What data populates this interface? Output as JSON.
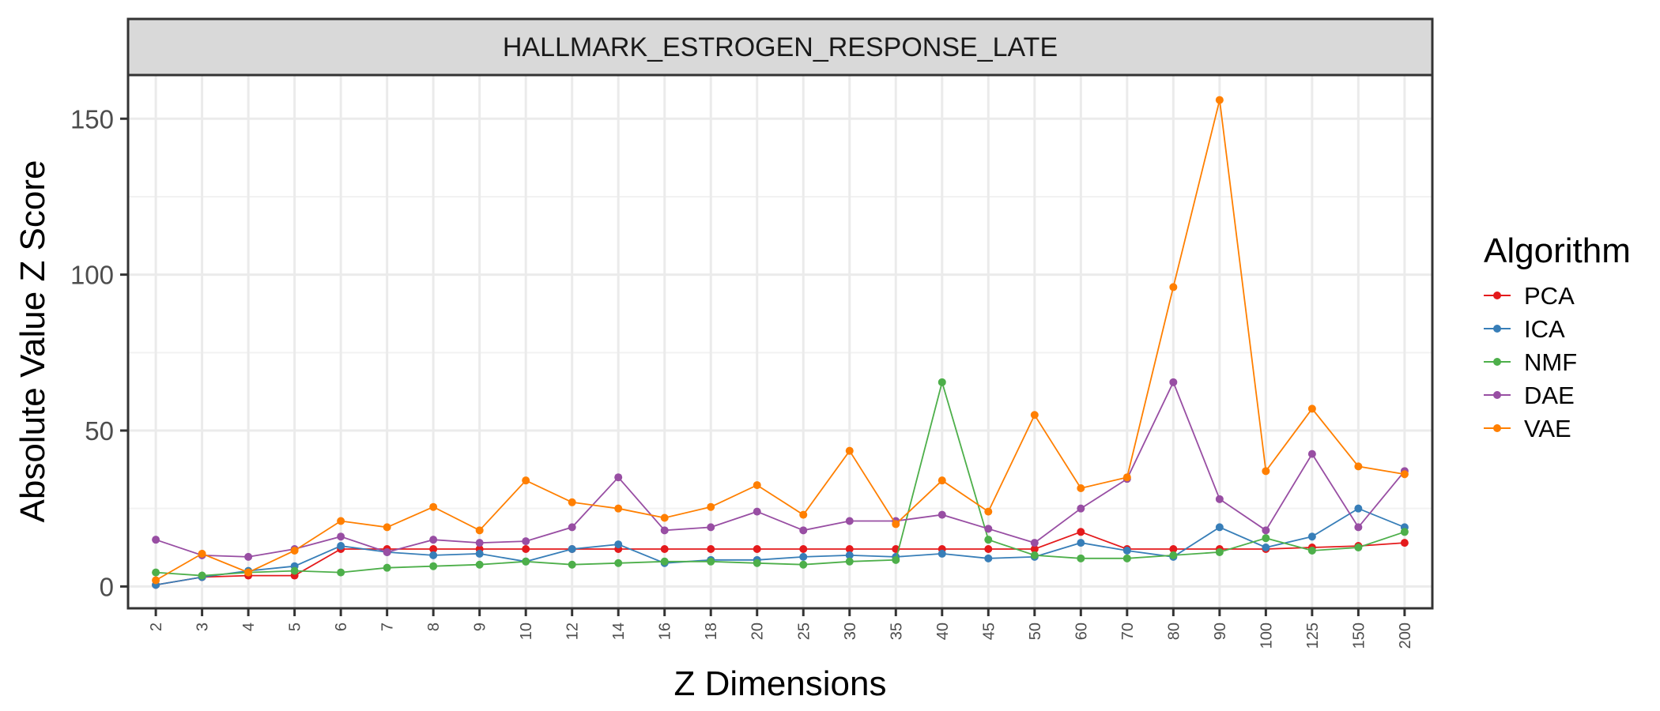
{
  "chart_data": {
    "type": "line",
    "title": "HALLMARK_ESTROGEN_RESPONSE_LATE",
    "xlabel": "Z Dimensions",
    "ylabel": "Absolute Value Z Score",
    "categories": [
      "2",
      "3",
      "4",
      "5",
      "6",
      "7",
      "8",
      "9",
      "10",
      "12",
      "14",
      "16",
      "18",
      "20",
      "25",
      "30",
      "35",
      "40",
      "45",
      "50",
      "60",
      "70",
      "80",
      "90",
      "100",
      "125",
      "150",
      "200"
    ],
    "ylim": [
      -7,
      164
    ],
    "yticks": [
      0,
      50,
      100,
      150
    ],
    "grid": true,
    "legend": {
      "title": "Algorithm",
      "placement": "right"
    },
    "series": [
      {
        "name": "PCA",
        "color": "#E41A1C",
        "values": [
          0.5,
          3,
          3.5,
          3.5,
          12,
          12,
          12,
          12,
          12,
          12,
          12,
          12,
          12,
          12,
          12,
          12,
          12,
          12,
          12,
          12,
          17.5,
          12,
          12,
          12,
          12,
          12.5,
          13,
          14
        ]
      },
      {
        "name": "ICA",
        "color": "#377EB8",
        "values": [
          0.5,
          3,
          5,
          6.5,
          13,
          11,
          10,
          10.5,
          8,
          12,
          13.5,
          7.5,
          8.5,
          8.5,
          9.5,
          10,
          9.5,
          10.5,
          9,
          9.5,
          14,
          11.5,
          9.5,
          19,
          12.5,
          16,
          25,
          19
        ]
      },
      {
        "name": "NMF",
        "color": "#4DAF4A",
        "values": [
          4.5,
          3.5,
          4.5,
          5,
          4.5,
          6,
          6.5,
          7,
          8,
          7,
          7.5,
          8,
          8,
          7.5,
          7,
          8,
          8.5,
          65.5,
          15,
          10,
          9,
          9,
          10,
          11,
          15.5,
          11.5,
          12.5,
          17.5
        ]
      },
      {
        "name": "DAE",
        "color": "#984EA3",
        "values": [
          15,
          10,
          9.5,
          12,
          16,
          11,
          15,
          14,
          14.5,
          19,
          35,
          18,
          19,
          24,
          18,
          21,
          21,
          23,
          18.5,
          14,
          25,
          34.5,
          65.5,
          28,
          18,
          42.5,
          19,
          37
        ]
      },
      {
        "name": "VAE",
        "color": "#FF7F00",
        "values": [
          2,
          10.5,
          4.5,
          11.5,
          21,
          19,
          25.5,
          18,
          34,
          27,
          25,
          22,
          25.5,
          32.5,
          23,
          43.5,
          20,
          34,
          24,
          55,
          31.5,
          35,
          96,
          156,
          37,
          57,
          38.5,
          36
        ]
      }
    ]
  }
}
